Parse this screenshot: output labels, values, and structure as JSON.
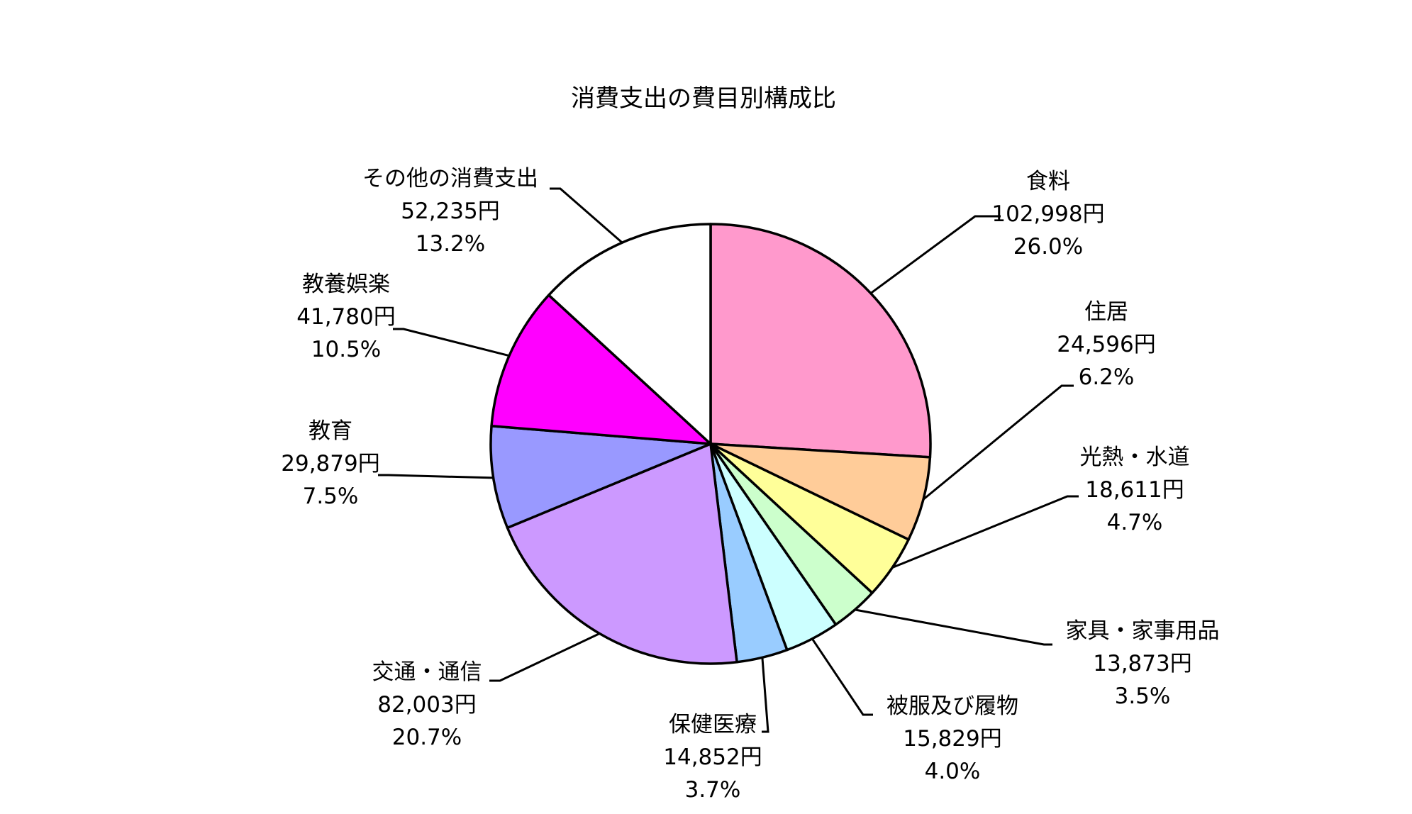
{
  "chart_data": {
    "type": "pie",
    "title": "消費支出の費目別構成比",
    "start_angle_deg": 0,
    "direction": "clockwise",
    "slices": [
      {
        "name": "食料",
        "value": 102998,
        "value_label": "102,998円",
        "percent_label": "26.0%",
        "color": "#FF99CC"
      },
      {
        "name": "住居",
        "value": 24596,
        "value_label": "24,596円",
        "percent_label": "6.2%",
        "color": "#FFCC99"
      },
      {
        "name": "光熱・水道",
        "value": 18611,
        "value_label": "18,611円",
        "percent_label": "4.7%",
        "color": "#FFFF99"
      },
      {
        "name": "家具・家事用品",
        "value": 13873,
        "value_label": "13,873円",
        "percent_label": "3.5%",
        "color": "#CCFFCC"
      },
      {
        "name": "被服及び履物",
        "value": 15829,
        "value_label": "15,829円",
        "percent_label": "4.0%",
        "color": "#CCFFFF"
      },
      {
        "name": "保健医療",
        "value": 14852,
        "value_label": "14,852円",
        "percent_label": "3.7%",
        "color": "#99CCFF"
      },
      {
        "name": "交通・通信",
        "value": 82003,
        "value_label": "82,003円",
        "percent_label": "20.7%",
        "color": "#CC99FF"
      },
      {
        "name": "教育",
        "value": 29879,
        "value_label": "29,879円",
        "percent_label": "7.5%",
        "color": "#9999FF"
      },
      {
        "name": "教養娯楽",
        "value": 41780,
        "value_label": "41,780円",
        "percent_label": "10.5%",
        "color": "#FF00FF"
      },
      {
        "name": "その他の消費支出",
        "value": 52235,
        "value_label": "52,235円",
        "percent_label": "13.2%",
        "color": "#FFFFFF"
      }
    ]
  }
}
